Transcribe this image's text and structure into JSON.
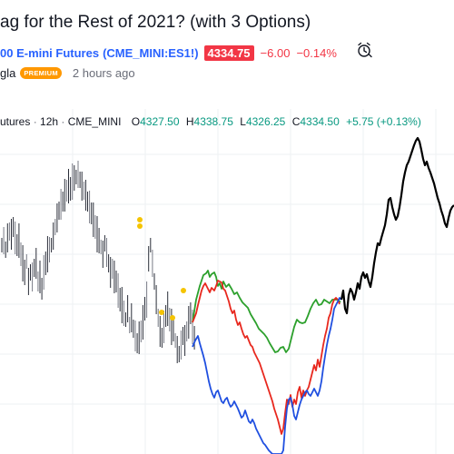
{
  "post": {
    "title": "ag for the Rest of 2021? (with 3 Options)",
    "author": "gla",
    "badge": "PREMIUM",
    "time_ago": "2 hours ago"
  },
  "symbol": {
    "name": "00 E-mini Futures",
    "code": "(CME_MINI:ES1!)",
    "price": "4334.75",
    "change": "−6.00",
    "change_pct": "−0.14%"
  },
  "legend": {
    "name": "utures",
    "interval": "12h",
    "exchange": "CME_MINI",
    "open_label": "O",
    "open": "4327.50",
    "high_label": "H",
    "high": "4338.75",
    "low_label": "L",
    "low": "4326.25",
    "close_label": "C",
    "close": "4334.50",
    "change": "+5.75 (+0.13%)"
  },
  "icons": {
    "alarm": "alarm-clock-icon"
  },
  "colors": {
    "up": "#089981",
    "down": "#f23645",
    "link": "#2962ff",
    "premium": "#ff9800",
    "option_green": "#2ca02c",
    "option_red": "#e8281e",
    "option_blue": "#1f4fe0",
    "projection_black": "#000000",
    "markers": "#f5c400"
  }
}
